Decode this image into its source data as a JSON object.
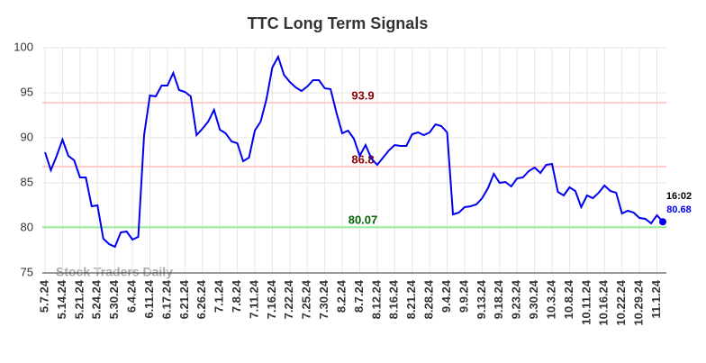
{
  "chart_data": {
    "type": "line",
    "title": "TTC Long Term Signals",
    "categories": [
      "5.7.24",
      null,
      null,
      "5.14.24",
      null,
      null,
      "5.21.24",
      null,
      null,
      "5.24.24",
      null,
      null,
      "5.30.24",
      null,
      null,
      "6.4.24",
      null,
      null,
      "6.11.24",
      null,
      null,
      "6.17.24",
      null,
      null,
      "6.21.24",
      null,
      null,
      "6.26.24",
      null,
      null,
      "7.1.24",
      null,
      null,
      "7.8.24",
      null,
      null,
      "7.11.24",
      null,
      null,
      "7.16.24",
      null,
      null,
      "7.22.24",
      null,
      null,
      "7.25.24",
      null,
      null,
      "7.30.24",
      null,
      null,
      "8.2.24",
      null,
      null,
      "8.7.24",
      null,
      null,
      "8.12.24",
      null,
      null,
      "8.16.24",
      null,
      null,
      "8.21.24",
      null,
      null,
      "8.28.24",
      null,
      null,
      "9.4.24",
      null,
      null,
      "9.9.24",
      null,
      null,
      "9.13.24",
      null,
      null,
      "9.18.24",
      null,
      null,
      "9.23.24",
      null,
      null,
      "9.30.24",
      null,
      null,
      "10.3.24",
      null,
      null,
      "10.8.24",
      null,
      null,
      "10.11.24",
      null,
      null,
      "10.16.24",
      null,
      null,
      "10.22.24",
      null,
      null,
      "10.29.24",
      null,
      null,
      "11.1.24",
      null
    ],
    "series": [
      {
        "color": "#0000ee",
        "values": [
          88.4,
          86.4,
          88,
          89.8,
          88,
          87.5,
          85.6,
          85.6,
          82.4,
          82.5,
          78.8,
          78.2,
          77.9,
          79.5,
          79.6,
          78.7,
          79,
          90.3,
          94.7,
          94.6,
          95.8,
          95.8,
          97.2,
          95.3,
          95.1,
          94.6,
          90.3,
          91,
          91.8,
          93.1,
          90.9,
          90.5,
          89.6,
          89.4,
          87.4,
          87.8,
          90.8,
          91.8,
          94.3,
          97.8,
          99,
          97,
          96.2,
          95.6,
          95.2,
          95.7,
          96.4,
          96.4,
          95.5,
          95.4,
          92.8,
          90.5,
          90.8,
          89.9,
          88,
          89.2,
          87.7,
          87,
          87.8,
          88.6,
          89.2,
          89.1,
          89.1,
          90.4,
          90.6,
          90.3,
          90.6,
          91.5,
          91.3,
          90.6,
          81.5,
          81.7,
          82.3,
          82.4,
          82.6,
          83.3,
          84.4,
          86,
          85,
          85.1,
          84.6,
          85.5,
          85.6,
          86.3,
          86.7,
          86.1,
          87,
          87.1,
          84,
          83.6,
          84.5,
          84.1,
          82.3,
          83.6,
          83.3,
          83.9,
          84.7,
          84.1,
          83.9,
          81.6,
          81.9,
          81.7,
          81.1,
          81,
          80.5,
          81.4,
          80.68
        ]
      }
    ],
    "ylim": [
      75,
      100
    ],
    "yticks": [
      75,
      80,
      85,
      90,
      95,
      100
    ],
    "grid": true,
    "hlines": [
      {
        "value": 93.9,
        "color": "#ffcccc",
        "label_color": "#8b0000"
      },
      {
        "value": 86.8,
        "color": "#ffcccc",
        "label_color": "#8b0000"
      },
      {
        "value": 80.07,
        "color": "#99ee99",
        "label_color": "#006400"
      }
    ],
    "last_time": "16:02",
    "watermark": "Stock Traders Daily"
  }
}
